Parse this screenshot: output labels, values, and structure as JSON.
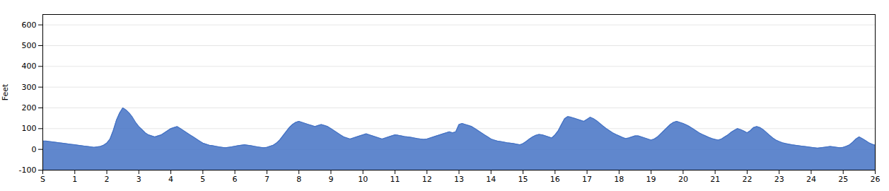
{
  "chart_data": {
    "type": "area",
    "ylabel": "Feet",
    "color": "#4472c4",
    "grid": true,
    "xlim": [
      0,
      26
    ],
    "xticks": [
      {
        "value": 0,
        "label": "S"
      },
      1,
      2,
      3,
      4,
      5,
      6,
      7,
      8,
      9,
      10,
      11,
      12,
      13,
      14,
      15,
      16,
      17,
      18,
      19,
      20,
      21,
      22,
      23,
      24,
      25,
      26
    ],
    "ylim": [
      -100,
      650
    ],
    "yticks": [
      -100,
      0,
      100,
      200,
      300,
      400,
      500,
      600
    ],
    "x": [
      0.0,
      0.1,
      0.2,
      0.3,
      0.4,
      0.5,
      0.6,
      0.7,
      0.8,
      0.9,
      1.0,
      1.1,
      1.2,
      1.3,
      1.4,
      1.5,
      1.6,
      1.7,
      1.8,
      1.9,
      2.0,
      2.1,
      2.2,
      2.3,
      2.4,
      2.5,
      2.6,
      2.7,
      2.8,
      2.9,
      3.0,
      3.1,
      3.2,
      3.3,
      3.4,
      3.5,
      3.6,
      3.7,
      3.8,
      3.9,
      4.0,
      4.1,
      4.2,
      4.3,
      4.4,
      4.5,
      4.6,
      4.7,
      4.8,
      4.9,
      5.0,
      5.1,
      5.2,
      5.3,
      5.4,
      5.5,
      5.6,
      5.7,
      5.8,
      5.9,
      6.0,
      6.1,
      6.2,
      6.3,
      6.4,
      6.5,
      6.6,
      6.7,
      6.8,
      6.9,
      7.0,
      7.1,
      7.2,
      7.3,
      7.4,
      7.5,
      7.6,
      7.7,
      7.8,
      7.9,
      8.0,
      8.1,
      8.2,
      8.3,
      8.4,
      8.5,
      8.6,
      8.7,
      8.8,
      8.9,
      9.0,
      9.1,
      9.2,
      9.3,
      9.4,
      9.5,
      9.6,
      9.7,
      9.8,
      9.9,
      10.0,
      10.1,
      10.2,
      10.3,
      10.4,
      10.5,
      10.6,
      10.7,
      10.8,
      10.9,
      11.0,
      11.1,
      11.2,
      11.3,
      11.4,
      11.5,
      11.6,
      11.7,
      11.8,
      11.9,
      12.0,
      12.1,
      12.2,
      12.3,
      12.4,
      12.5,
      12.6,
      12.7,
      12.8,
      12.9,
      13.0,
      13.1,
      13.2,
      13.3,
      13.4,
      13.5,
      13.6,
      13.7,
      13.8,
      13.9,
      14.0,
      14.1,
      14.2,
      14.3,
      14.4,
      14.5,
      14.6,
      14.7,
      14.8,
      14.9,
      15.0,
      15.1,
      15.2,
      15.3,
      15.4,
      15.5,
      15.6,
      15.7,
      15.8,
      15.9,
      16.0,
      16.1,
      16.2,
      16.3,
      16.4,
      16.5,
      16.6,
      16.7,
      16.8,
      16.9,
      17.0,
      17.1,
      17.2,
      17.3,
      17.4,
      17.5,
      17.6,
      17.7,
      17.8,
      17.9,
      18.0,
      18.1,
      18.2,
      18.3,
      18.4,
      18.5,
      18.6,
      18.7,
      18.8,
      18.9,
      19.0,
      19.1,
      19.2,
      19.3,
      19.4,
      19.5,
      19.6,
      19.7,
      19.8,
      19.9,
      20.0,
      20.1,
      20.2,
      20.3,
      20.4,
      20.5,
      20.6,
      20.7,
      20.8,
      20.9,
      21.0,
      21.1,
      21.2,
      21.3,
      21.4,
      21.5,
      21.6,
      21.7,
      21.8,
      21.9,
      22.0,
      22.1,
      22.2,
      22.3,
      22.4,
      22.5,
      22.6,
      22.7,
      22.8,
      22.9,
      23.0,
      23.1,
      23.2,
      23.3,
      23.4,
      23.5,
      23.6,
      23.7,
      23.8,
      23.9,
      24.0,
      24.1,
      24.2,
      24.3,
      24.4,
      24.5,
      24.6,
      24.7,
      24.8,
      24.9,
      25.0,
      25.1,
      25.2,
      25.3,
      25.4,
      25.5,
      25.6,
      25.7,
      25.8,
      25.9,
      26.0
    ],
    "values": [
      40,
      40,
      38,
      36,
      34,
      32,
      30,
      28,
      26,
      24,
      22,
      20,
      18,
      16,
      14,
      12,
      10,
      12,
      14,
      20,
      30,
      50,
      90,
      140,
      175,
      200,
      190,
      175,
      155,
      130,
      110,
      95,
      80,
      70,
      65,
      60,
      65,
      70,
      80,
      90,
      100,
      105,
      110,
      100,
      90,
      80,
      70,
      60,
      50,
      40,
      30,
      25,
      20,
      18,
      15,
      12,
      10,
      8,
      10,
      12,
      15,
      18,
      20,
      22,
      20,
      18,
      15,
      12,
      10,
      8,
      10,
      15,
      20,
      30,
      45,
      65,
      85,
      105,
      120,
      130,
      135,
      130,
      125,
      120,
      115,
      110,
      115,
      120,
      115,
      110,
      100,
      90,
      80,
      70,
      60,
      55,
      50,
      55,
      60,
      65,
      70,
      75,
      70,
      65,
      60,
      55,
      50,
      55,
      60,
      65,
      70,
      68,
      65,
      62,
      60,
      58,
      55,
      52,
      50,
      48,
      50,
      55,
      60,
      65,
      70,
      75,
      80,
      85,
      80,
      85,
      120,
      125,
      120,
      115,
      110,
      100,
      90,
      80,
      70,
      60,
      50,
      45,
      40,
      38,
      35,
      32,
      30,
      28,
      25,
      22,
      28,
      38,
      50,
      60,
      68,
      72,
      70,
      65,
      60,
      55,
      70,
      90,
      120,
      148,
      158,
      155,
      150,
      145,
      140,
      135,
      145,
      155,
      148,
      138,
      125,
      112,
      100,
      90,
      80,
      72,
      65,
      58,
      52,
      55,
      60,
      65,
      65,
      60,
      55,
      50,
      45,
      50,
      60,
      75,
      90,
      105,
      120,
      130,
      135,
      130,
      125,
      118,
      110,
      100,
      90,
      80,
      72,
      65,
      58,
      52,
      48,
      45,
      50,
      60,
      70,
      82,
      92,
      100,
      95,
      88,
      80,
      90,
      105,
      110,
      105,
      95,
      82,
      68,
      55,
      45,
      38,
      32,
      28,
      25,
      22,
      20,
      18,
      16,
      14,
      12,
      10,
      8,
      6,
      8,
      10,
      12,
      14,
      12,
      10,
      8,
      10,
      15,
      22,
      35,
      50,
      60,
      52,
      42,
      32,
      25,
      20
    ]
  }
}
